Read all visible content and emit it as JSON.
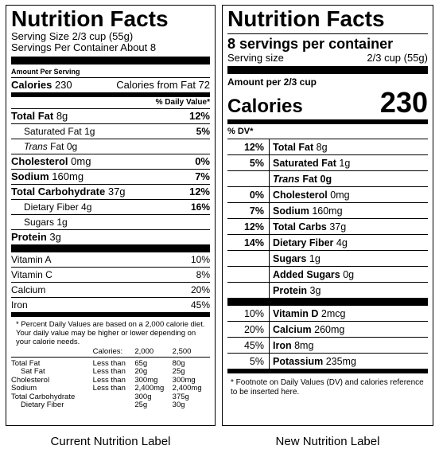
{
  "current": {
    "title": "Nutrition Facts",
    "serving_size": "Serving Size 2/3 cup (55g)",
    "servings_per_container": "Servings Per Container About 8",
    "amount_per_serving": "Amount Per Serving",
    "calories_label": "Calories",
    "calories_value": "230",
    "calories_from_fat": "Calories from Fat 72",
    "daily_value_header": "% Daily Value*",
    "nutrients": [
      {
        "name": "Total Fat",
        "amount": "8g",
        "dv": "12%"
      },
      {
        "name": "Saturated Fat",
        "amount": "1g",
        "dv": "5%"
      },
      {
        "name": "Trans",
        "amount": "Fat 0g",
        "dv": ""
      },
      {
        "name": "Cholesterol",
        "amount": "0mg",
        "dv": "0%"
      },
      {
        "name": "Sodium",
        "amount": "160mg",
        "dv": "7%"
      },
      {
        "name": "Total Carbohydrate",
        "amount": "37g",
        "dv": "12%"
      },
      {
        "name": "Dietary Fiber",
        "amount": "4g",
        "dv": "16%"
      },
      {
        "name": "Sugars",
        "amount": "1g",
        "dv": ""
      },
      {
        "name": "Protein",
        "amount": "3g",
        "dv": ""
      }
    ],
    "vitamins": [
      {
        "name": "Vitamin A",
        "dv": "10%"
      },
      {
        "name": "Vitamin C",
        "dv": "8%"
      },
      {
        "name": "Calcium",
        "dv": "20%"
      },
      {
        "name": "Iron",
        "dv": "45%"
      }
    ],
    "footnote": "* Percent Daily Values are based on a 2,000 calorie diet. Your daily value may be higher or lower depending on your calorie needs.",
    "dv_table": {
      "header": [
        "",
        "Calories:",
        "2,000",
        "2,500"
      ],
      "rows": [
        [
          "Total Fat",
          "Less than",
          "65g",
          "80g"
        ],
        [
          "Sat Fat",
          "Less than",
          "20g",
          "25g"
        ],
        [
          "Cholesterol",
          "Less than",
          "300mg",
          "300mg"
        ],
        [
          "Sodium",
          "Less than",
          "2,400mg",
          "2,400mg"
        ],
        [
          "Total Carbohydrate",
          "",
          "300g",
          "375g"
        ],
        [
          "Dietary Fiber",
          "",
          "25g",
          "30g"
        ]
      ]
    },
    "caption": "Current Nutrition Label"
  },
  "proposed": {
    "title": "Nutrition Facts",
    "servings": "8 servings per container",
    "serving_size_label": "Serving size",
    "serving_size_value": "2/3 cup (55g)",
    "amount_per": "Amount per 2/3 cup",
    "calories_label": "Calories",
    "calories_value": "230",
    "dv_header": "% DV*",
    "nutrients": [
      {
        "dv": "12%",
        "name": "Total Fat",
        "amount": "8g"
      },
      {
        "dv": "5%",
        "name": "Saturated Fat",
        "amount": "1g"
      },
      {
        "dv": "",
        "name": "Trans",
        "amount": "Fat 0g"
      },
      {
        "dv": "0%",
        "name": "Cholesterol",
        "amount": "0mg"
      },
      {
        "dv": "7%",
        "name": "Sodium",
        "amount": "160mg"
      },
      {
        "dv": "12%",
        "name": "Total Carbs",
        "amount": "37g"
      },
      {
        "dv": "14%",
        "name": "Dietary Fiber",
        "amount": "4g"
      },
      {
        "dv": "",
        "name": "Sugars",
        "amount": "1g"
      },
      {
        "dv": "",
        "name": "Added Sugars",
        "amount": "0g"
      },
      {
        "dv": "",
        "name": "Protein",
        "amount": "3g"
      }
    ],
    "vitamins": [
      {
        "dv": "10%",
        "name": "Vitamin D",
        "amount": "2mcg"
      },
      {
        "dv": "20%",
        "name": "Calcium",
        "amount": "260mg"
      },
      {
        "dv": "45%",
        "name": "Iron",
        "amount": "8mg"
      },
      {
        "dv": "5%",
        "name": "Potassium",
        "amount": "235mg"
      }
    ],
    "footnote": "* Footnote on Daily Values (DV) and calories reference to be inserted here.",
    "caption": "New Nutrition Label"
  }
}
